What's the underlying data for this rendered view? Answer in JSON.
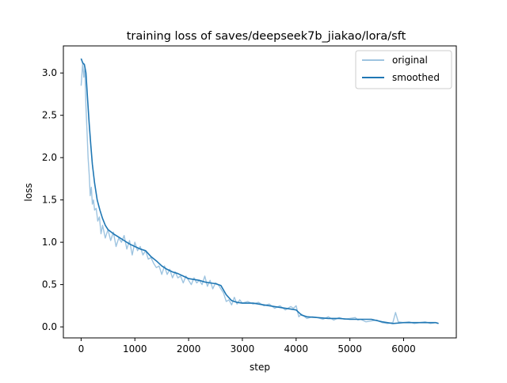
{
  "chart_data": {
    "type": "line",
    "title": "training loss of saves/deepseek7b_jiakao/lora/sft",
    "xlabel": "step",
    "ylabel": "loss",
    "xlim": [
      -330,
      6980
    ],
    "ylim": [
      -0.13,
      3.32
    ],
    "xticks": [
      0,
      1000,
      2000,
      3000,
      4000,
      5000,
      6000
    ],
    "yticks": [
      0.0,
      0.5,
      1.0,
      1.5,
      2.0,
      2.5,
      3.0
    ],
    "xtick_labels": [
      "0",
      "1000",
      "2000",
      "3000",
      "4000",
      "5000",
      "6000"
    ],
    "ytick_labels": [
      "0.0",
      "0.5",
      "1.0",
      "1.5",
      "2.0",
      "2.5",
      "3.0"
    ],
    "grid": false,
    "legend": {
      "position": "upper right",
      "entries": [
        "original",
        "smoothed"
      ]
    },
    "colors": {
      "original": "#9ec4e0",
      "smoothed": "#1f77b4"
    },
    "series": [
      {
        "name": "original",
        "style": "light",
        "x": [
          0,
          30,
          50,
          70,
          90,
          110,
          130,
          150,
          170,
          190,
          210,
          230,
          250,
          280,
          310,
          340,
          370,
          400,
          450,
          500,
          550,
          600,
          650,
          700,
          750,
          800,
          850,
          900,
          950,
          1000,
          1050,
          1100,
          1150,
          1200,
          1250,
          1300,
          1350,
          1400,
          1450,
          1500,
          1550,
          1600,
          1650,
          1700,
          1750,
          1800,
          1850,
          1900,
          1950,
          2000,
          2050,
          2100,
          2150,
          2200,
          2250,
          2300,
          2350,
          2400,
          2450,
          2500,
          2550,
          2600,
          2650,
          2700,
          2750,
          2800,
          2850,
          2900,
          2950,
          3000,
          3100,
          3200,
          3300,
          3400,
          3500,
          3600,
          3700,
          3800,
          3900,
          3950,
          4000,
          4050,
          4100,
          4200,
          4300,
          4400,
          4500,
          4600,
          4700,
          4800,
          4900,
          5000,
          5100,
          5150,
          5200,
          5300,
          5400,
          5500,
          5600,
          5700,
          5800,
          5850,
          5900,
          6000,
          6100,
          6200,
          6300,
          6400,
          6500,
          6600,
          6650
        ],
        "y": [
          2.85,
          3.12,
          2.95,
          3.05,
          2.6,
          2.3,
          2.0,
          1.8,
          1.55,
          1.65,
          1.45,
          1.5,
          1.38,
          1.4,
          1.25,
          1.3,
          1.1,
          1.2,
          1.05,
          1.15,
          1.02,
          1.12,
          0.95,
          1.05,
          1.0,
          1.08,
          0.92,
          1.02,
          0.85,
          1.0,
          0.9,
          0.95,
          0.85,
          0.9,
          0.8,
          0.82,
          0.75,
          0.7,
          0.72,
          0.62,
          0.72,
          0.62,
          0.68,
          0.58,
          0.65,
          0.58,
          0.6,
          0.52,
          0.6,
          0.55,
          0.5,
          0.58,
          0.52,
          0.55,
          0.5,
          0.6,
          0.48,
          0.55,
          0.45,
          0.52,
          0.5,
          0.45,
          0.4,
          0.3,
          0.32,
          0.26,
          0.35,
          0.27,
          0.32,
          0.28,
          0.3,
          0.27,
          0.29,
          0.25,
          0.27,
          0.22,
          0.25,
          0.2,
          0.24,
          0.22,
          0.25,
          0.12,
          0.15,
          0.1,
          0.12,
          0.11,
          0.09,
          0.12,
          0.08,
          0.11,
          0.09,
          0.1,
          0.11,
          0.08,
          0.09,
          0.06,
          0.07,
          0.08,
          0.05,
          0.04,
          0.05,
          0.17,
          0.06,
          0.05,
          0.06,
          0.04,
          0.05,
          0.06,
          0.04,
          0.05,
          0.04
        ]
      },
      {
        "name": "smoothed",
        "style": "dark",
        "x": [
          0,
          30,
          60,
          90,
          120,
          150,
          180,
          210,
          250,
          300,
          350,
          400,
          450,
          500,
          600,
          700,
          800,
          900,
          1000,
          1100,
          1200,
          1300,
          1400,
          1500,
          1600,
          1700,
          1800,
          1900,
          2000,
          2100,
          2200,
          2300,
          2400,
          2500,
          2600,
          2700,
          2800,
          2900,
          3000,
          3200,
          3400,
          3600,
          3800,
          3900,
          4000,
          4100,
          4200,
          4400,
          4600,
          4800,
          5000,
          5200,
          5400,
          5600,
          5800,
          6000,
          6200,
          6400,
          6600,
          6650
        ],
        "y": [
          3.17,
          3.12,
          3.1,
          3.0,
          2.7,
          2.4,
          2.15,
          1.92,
          1.7,
          1.5,
          1.38,
          1.28,
          1.2,
          1.15,
          1.1,
          1.06,
          1.02,
          0.98,
          0.95,
          0.92,
          0.9,
          0.83,
          0.78,
          0.72,
          0.68,
          0.65,
          0.63,
          0.6,
          0.57,
          0.56,
          0.55,
          0.53,
          0.52,
          0.51,
          0.49,
          0.38,
          0.31,
          0.29,
          0.28,
          0.28,
          0.26,
          0.24,
          0.22,
          0.21,
          0.2,
          0.14,
          0.12,
          0.11,
          0.1,
          0.1,
          0.09,
          0.09,
          0.09,
          0.06,
          0.04,
          0.05,
          0.05,
          0.05,
          0.05,
          0.04
        ]
      }
    ]
  }
}
